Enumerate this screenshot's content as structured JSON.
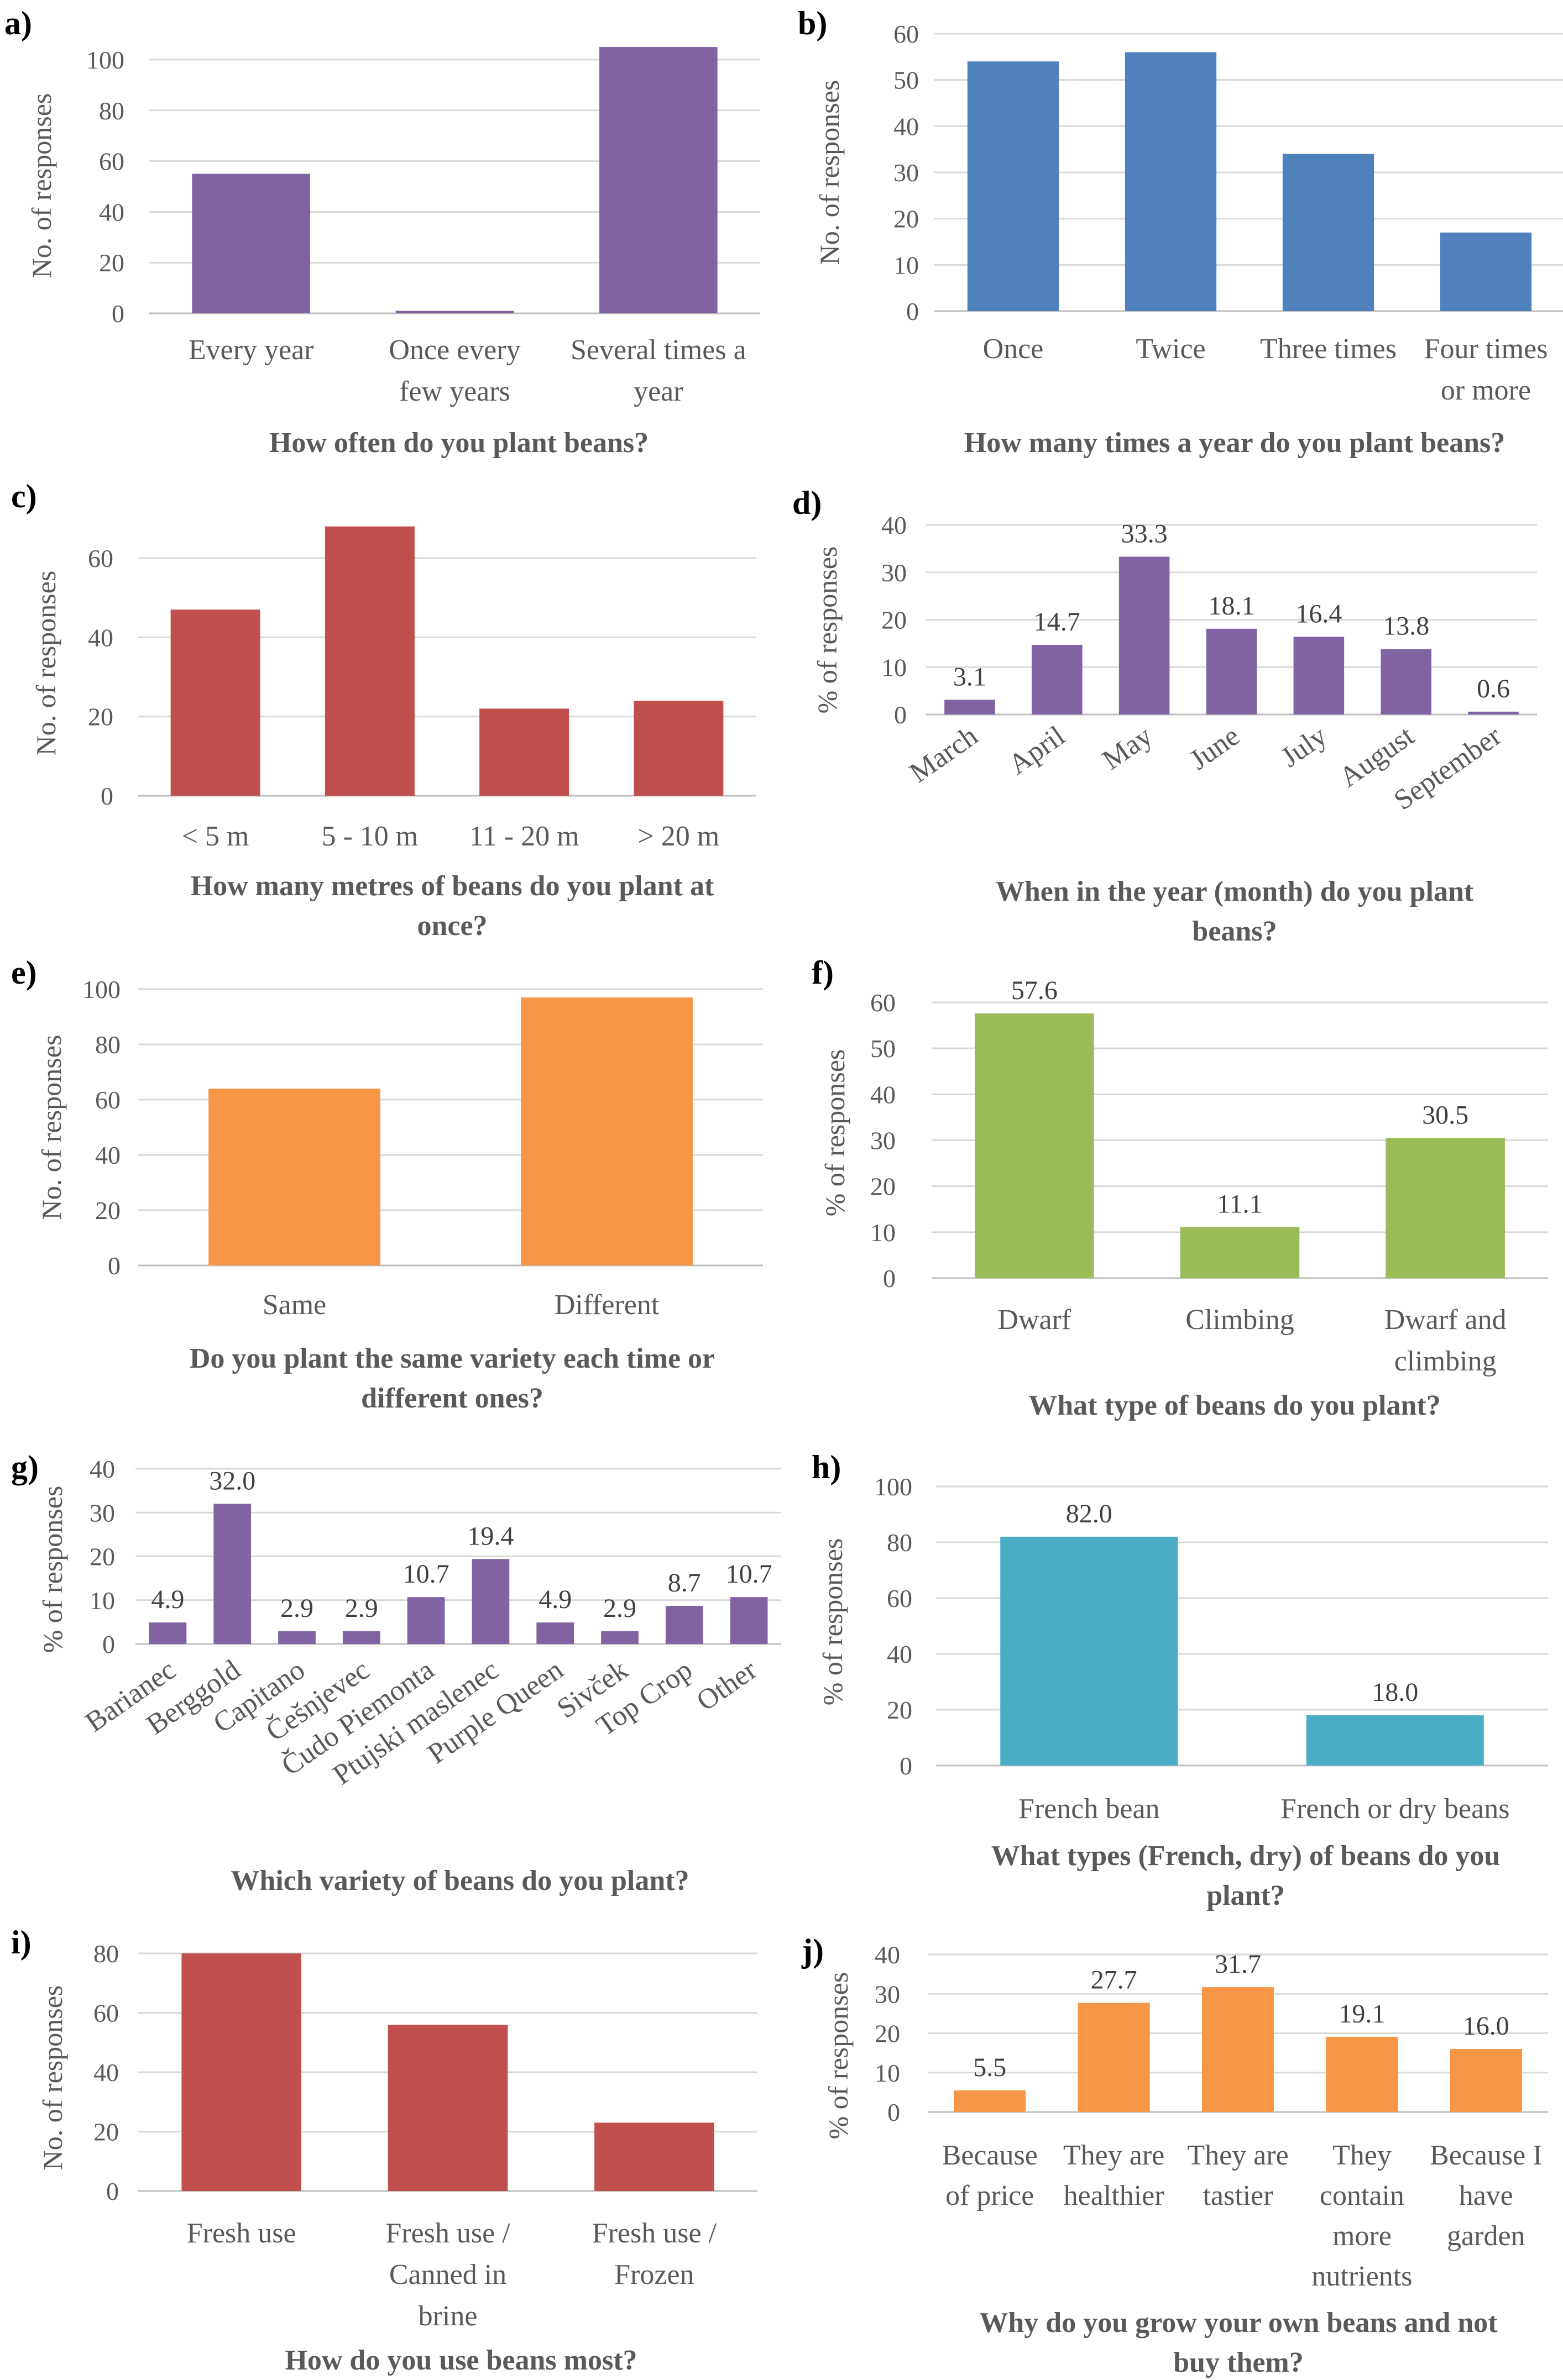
{
  "chart_data": [
    {
      "id": "a",
      "panel": "a)",
      "type": "bar",
      "title": [
        "How often do you plant beans?"
      ],
      "ylabel": "No. of responses",
      "xlabel": "",
      "ylim": [
        0,
        100
      ],
      "yticks": [
        0,
        20,
        40,
        60,
        80,
        100
      ],
      "color": "#8064A2",
      "categories": [
        [
          "Every year"
        ],
        [
          "Once every",
          "few years"
        ],
        [
          "Several times a",
          "year"
        ]
      ],
      "values": [
        55,
        1,
        105
      ],
      "data_labels": []
    },
    {
      "id": "b",
      "panel": "b)",
      "type": "bar",
      "title": [
        "How many times a year do you plant beans?"
      ],
      "ylabel": "No. of responses",
      "xlabel": "",
      "ylim": [
        0,
        60
      ],
      "yticks": [
        0,
        10,
        20,
        30,
        40,
        50,
        60
      ],
      "color": "#4F81BD",
      "categories": [
        [
          "Once"
        ],
        [
          "Twice"
        ],
        [
          "Three times"
        ],
        [
          "Four times",
          "or more"
        ]
      ],
      "values": [
        54,
        56,
        34,
        17
      ],
      "data_labels": []
    },
    {
      "id": "c",
      "panel": "c)",
      "type": "bar",
      "title": [
        "How many metres of beans do you plant at",
        "once?"
      ],
      "ylabel": "No. of responses",
      "xlabel": "",
      "ylim": [
        0,
        60
      ],
      "yticks": [
        0,
        20,
        40,
        60
      ],
      "color": "#C0504D",
      "categories": [
        [
          "< 5 m"
        ],
        [
          "5 - 10 m"
        ],
        [
          "11 - 20 m"
        ],
        [
          "> 20 m"
        ]
      ],
      "values": [
        47,
        68,
        22,
        24
      ],
      "data_labels": []
    },
    {
      "id": "d",
      "panel": "d)",
      "type": "bar",
      "title": [
        "When in the year (month) do you plant",
        "beans?"
      ],
      "ylabel": "% of responses",
      "xlabel": "",
      "ylim": [
        0,
        40
      ],
      "yticks": [
        0,
        10,
        20,
        30,
        40
      ],
      "color": "#8064A2",
      "categories": [
        [
          "March"
        ],
        [
          "April"
        ],
        [
          "May"
        ],
        [
          "June"
        ],
        [
          "July"
        ],
        [
          "August"
        ],
        [
          "September"
        ]
      ],
      "values": [
        3.1,
        14.7,
        33.3,
        18.1,
        16.4,
        13.8,
        0.6
      ],
      "data_labels": [
        "3.1",
        "14.7",
        "33.3",
        "18.1",
        "16.4",
        "13.8",
        "0.6"
      ]
    },
    {
      "id": "e",
      "panel": "e)",
      "type": "bar",
      "title": [
        "Do you plant the same variety each time or",
        "different ones?"
      ],
      "ylabel": "No. of responses",
      "xlabel": "",
      "ylim": [
        0,
        100
      ],
      "yticks": [
        0,
        20,
        40,
        60,
        80,
        100
      ],
      "color": "#F79646",
      "categories": [
        [
          "Same"
        ],
        [
          "Different"
        ]
      ],
      "values": [
        64,
        97
      ],
      "data_labels": []
    },
    {
      "id": "f",
      "panel": "f)",
      "type": "bar",
      "title": [
        "What type of beans do you plant?"
      ],
      "ylabel": "% of responses",
      "xlabel": "",
      "ylim": [
        0,
        60
      ],
      "yticks": [
        0,
        10,
        20,
        30,
        40,
        50,
        60
      ],
      "color": "#9BBB59",
      "categories": [
        [
          "Dwarf"
        ],
        [
          "Climbing"
        ],
        [
          "Dwarf and",
          "climbing"
        ]
      ],
      "values": [
        57.6,
        11.1,
        30.5
      ],
      "data_labels": [
        "57.6",
        "11.1",
        "30.5"
      ]
    },
    {
      "id": "g",
      "panel": "g)",
      "type": "bar",
      "title": [
        "Which variety of beans do you plant?"
      ],
      "ylabel": "% of responses",
      "xlabel": "",
      "ylim": [
        0,
        40
      ],
      "yticks": [
        0,
        10,
        20,
        30,
        40
      ],
      "color": "#8064A2",
      "categories": [
        [
          "Barianec"
        ],
        [
          "Berggold"
        ],
        [
          "Capitano"
        ],
        [
          "Češnjevec"
        ],
        [
          "Čudo Piemonta"
        ],
        [
          "Ptujski maslenec"
        ],
        [
          "Purple Queen"
        ],
        [
          "Sivček"
        ],
        [
          "Top Crop"
        ],
        [
          "Other"
        ]
      ],
      "values": [
        4.9,
        32.0,
        2.9,
        2.9,
        10.7,
        19.4,
        4.9,
        2.9,
        8.7,
        10.7
      ],
      "data_labels": [
        "4.9",
        "32.0",
        "2.9",
        "2.9",
        "10.7",
        "19.4",
        "4.9",
        "2.9",
        "8.7",
        "10.7"
      ]
    },
    {
      "id": "h",
      "panel": "h)",
      "type": "bar",
      "title": [
        "What types (French, dry) of beans do you",
        "plant?"
      ],
      "ylabel": "% of responses",
      "xlabel": "",
      "ylim": [
        0,
        100
      ],
      "yticks": [
        0,
        20,
        40,
        60,
        80,
        100
      ],
      "color": "#4BACC6",
      "categories": [
        [
          "French bean"
        ],
        [
          "French or dry beans"
        ]
      ],
      "values": [
        82.0,
        18.0
      ],
      "data_labels": [
        "82.0",
        "18.0"
      ]
    },
    {
      "id": "i",
      "panel": "i)",
      "type": "bar",
      "title": [
        "How do you use beans most?"
      ],
      "ylabel": "No. of responses",
      "xlabel": "",
      "ylim": [
        0,
        80
      ],
      "yticks": [
        0,
        20,
        40,
        60,
        80
      ],
      "color": "#C0504D",
      "categories": [
        [
          "Fresh use"
        ],
        [
          "Fresh use /",
          "Canned in",
          "brine"
        ],
        [
          "Fresh use /",
          "Frozen"
        ]
      ],
      "values": [
        80,
        56,
        23
      ],
      "data_labels": []
    },
    {
      "id": "j",
      "panel": "j)",
      "type": "bar",
      "title": [
        "Why do you grow your own beans and not",
        "buy them?"
      ],
      "ylabel": "% of responses",
      "xlabel": "",
      "ylim": [
        0,
        40
      ],
      "yticks": [
        0,
        10,
        20,
        30,
        40
      ],
      "color": "#F79646",
      "categories": [
        [
          "Because",
          "of price"
        ],
        [
          "They are",
          "healthier"
        ],
        [
          "They are",
          "tastier"
        ],
        [
          "They",
          "contain",
          "more",
          "nutrients"
        ],
        [
          "Because I",
          "have",
          "garden"
        ]
      ],
      "values": [
        5.5,
        27.7,
        31.7,
        19.1,
        16.0
      ],
      "data_labels": [
        "5.5",
        "27.7",
        "31.7",
        "19.1",
        "16.0"
      ]
    }
  ]
}
